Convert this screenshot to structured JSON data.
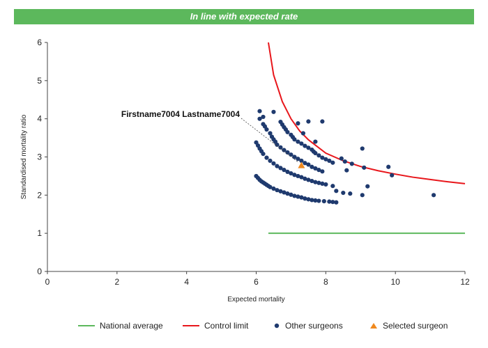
{
  "banner": {
    "text": "In line with expected rate"
  },
  "colors": {
    "banner_bg": "#5cb85c",
    "national_average": "#5cb85c",
    "control_limit": "#e8161b",
    "other_surgeons": "#1f3a6e",
    "selected_surgeon": "#f0891e"
  },
  "chart_data": {
    "type": "scatter",
    "title": "",
    "xlabel": "Expected mortality",
    "ylabel": "Standardised mortality ratio",
    "xlim": [
      0,
      12
    ],
    "ylim": [
      0,
      6
    ],
    "x_ticks": [
      0,
      2,
      4,
      6,
      8,
      10,
      12
    ],
    "y_ticks": [
      0,
      1,
      2,
      3,
      4,
      5,
      6
    ],
    "grid": false,
    "legend_position": "bottom",
    "annotation": {
      "text": "Firstname7004 Lastname7004",
      "x": 7.3,
      "y": 2.78
    },
    "series": [
      {
        "name": "National average",
        "kind": "line",
        "x": [
          6.35,
          12
        ],
        "y": [
          1.0,
          1.0
        ]
      },
      {
        "name": "Control limit",
        "kind": "line",
        "x": [
          6.35,
          6.5,
          6.75,
          7.0,
          7.25,
          7.5,
          8.0,
          8.5,
          9.0,
          9.5,
          10.0,
          10.5,
          11.0,
          11.5,
          12.0
        ],
        "y": [
          6.0,
          5.15,
          4.45,
          4.0,
          3.68,
          3.45,
          3.1,
          2.9,
          2.75,
          2.64,
          2.55,
          2.47,
          2.41,
          2.35,
          2.3
        ]
      },
      {
        "name": "Other surgeons",
        "kind": "scatter",
        "x": [
          6.0,
          6.05,
          6.1,
          6.15,
          6.2,
          6.25,
          6.3,
          6.35,
          6.4,
          6.5,
          6.6,
          6.7,
          6.8,
          6.9,
          7.0,
          7.1,
          7.2,
          7.3,
          7.4,
          7.5,
          7.6,
          7.7,
          7.8,
          7.95,
          8.1,
          8.2,
          8.3,
          6.0,
          6.05,
          6.1,
          6.15,
          6.2,
          6.3,
          6.4,
          6.5,
          6.6,
          6.7,
          6.8,
          6.9,
          7.0,
          7.1,
          7.2,
          7.3,
          7.4,
          7.5,
          7.6,
          7.7,
          7.8,
          7.9,
          8.0,
          8.2,
          8.3,
          8.5,
          8.7,
          6.1,
          6.2,
          6.25,
          6.3,
          6.4,
          6.45,
          6.5,
          6.55,
          6.6,
          6.7,
          6.8,
          6.9,
          7.0,
          7.1,
          7.2,
          7.3,
          7.4,
          7.5,
          7.6,
          7.7,
          7.8,
          7.9,
          6.1,
          6.5,
          6.7,
          6.75,
          6.8,
          6.85,
          6.9,
          7.0,
          7.05,
          7.1,
          7.2,
          7.3,
          7.4,
          7.5,
          7.6,
          7.65,
          7.7,
          7.8,
          7.9,
          8.0,
          8.1,
          8.2,
          6.2,
          7.2,
          7.5,
          7.9,
          7.35,
          7.7,
          8.45,
          8.55,
          8.6,
          8.75,
          9.05,
          9.1,
          9.8,
          9.9,
          9.2,
          9.05,
          11.1
        ],
        "y": [
          2.5,
          2.45,
          2.4,
          2.36,
          2.33,
          2.3,
          2.27,
          2.24,
          2.21,
          2.17,
          2.13,
          2.1,
          2.07,
          2.04,
          2.01,
          1.98,
          1.96,
          1.94,
          1.91,
          1.89,
          1.87,
          1.86,
          1.85,
          1.84,
          1.83,
          1.82,
          1.81,
          3.38,
          3.3,
          3.22,
          3.15,
          3.08,
          2.98,
          2.9,
          2.83,
          2.76,
          2.71,
          2.66,
          2.61,
          2.57,
          2.53,
          2.5,
          2.47,
          2.43,
          2.4,
          2.37,
          2.34,
          2.32,
          2.3,
          2.28,
          2.24,
          2.11,
          2.06,
          2.04,
          4.0,
          3.86,
          3.8,
          3.72,
          3.62,
          3.53,
          3.46,
          3.4,
          3.32,
          3.25,
          3.18,
          3.12,
          3.06,
          3.0,
          2.95,
          2.9,
          2.84,
          2.8,
          2.74,
          2.7,
          2.66,
          2.62,
          4.2,
          4.18,
          3.92,
          3.85,
          3.78,
          3.72,
          3.65,
          3.58,
          3.52,
          3.46,
          3.4,
          3.35,
          3.29,
          3.24,
          3.19,
          3.14,
          3.1,
          3.04,
          2.98,
          2.94,
          2.9,
          2.85,
          4.05,
          3.88,
          3.93,
          3.93,
          3.62,
          3.4,
          2.96,
          2.88,
          2.65,
          2.82,
          3.22,
          2.72,
          2.74,
          2.52,
          2.23,
          2.0,
          2.0
        ]
      },
      {
        "name": "Selected surgeon",
        "kind": "scatter",
        "x": [
          7.3
        ],
        "y": [
          2.78
        ]
      }
    ]
  },
  "legend": [
    {
      "label": "National average",
      "symbol": "line",
      "color": "#5cb85c"
    },
    {
      "label": "Control limit",
      "symbol": "line",
      "color": "#e8161b"
    },
    {
      "label": "Other surgeons",
      "symbol": "dot",
      "color": "#1f3a6e"
    },
    {
      "label": "Selected surgeon",
      "symbol": "triangle",
      "color": "#f0891e"
    }
  ]
}
